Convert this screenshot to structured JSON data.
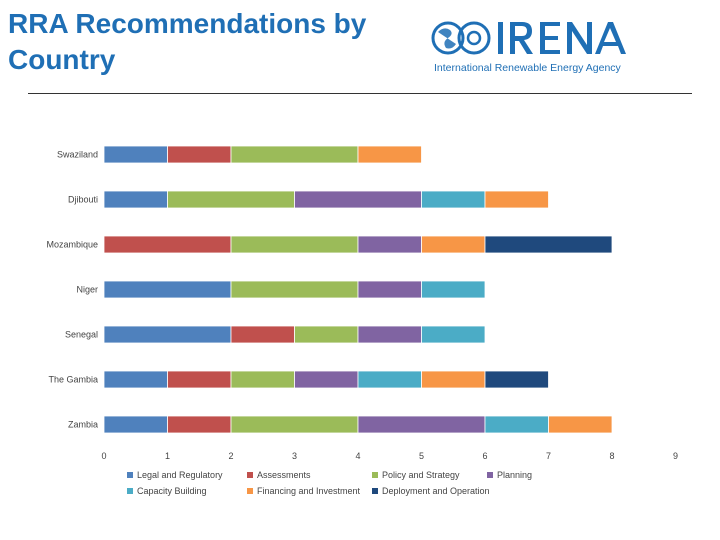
{
  "slide": {
    "title": "RRA Recommendations by Country"
  },
  "logo": {
    "name": "IRENA",
    "tagline": "International Renewable Energy Agency",
    "color": "#1f6fb5"
  },
  "chart_data": {
    "type": "bar",
    "orientation": "horizontal",
    "stacked": true,
    "categories": [
      "Swaziland",
      "Djibouti",
      "Mozambique",
      "Niger",
      "Senegal",
      "The Gambia",
      "Zambia"
    ],
    "series": [
      {
        "name": "Legal and Regulatory",
        "color": "#4f81bd",
        "values": [
          1,
          1,
          0,
          2,
          2,
          1,
          1
        ]
      },
      {
        "name": "Assessments",
        "color": "#c0504d",
        "values": [
          1,
          0,
          2,
          0,
          1,
          1,
          1
        ]
      },
      {
        "name": "Policy and Strategy",
        "color": "#9bbb59",
        "values": [
          2,
          2,
          2,
          2,
          1,
          1,
          2
        ]
      },
      {
        "name": "Planning",
        "color": "#8064a2",
        "values": [
          0,
          2,
          1,
          1,
          1,
          1,
          2
        ]
      },
      {
        "name": "Capacity Building",
        "color": "#4bacc6",
        "values": [
          0,
          1,
          0,
          1,
          1,
          1,
          1
        ]
      },
      {
        "name": "Financing and Investment",
        "color": "#f79646",
        "values": [
          1,
          1,
          1,
          0,
          0,
          1,
          1
        ]
      },
      {
        "name": "Deployment and Operation",
        "color": "#1f497d",
        "values": [
          0,
          0,
          2,
          0,
          0,
          1,
          0
        ]
      }
    ],
    "xlim": [
      0,
      9
    ],
    "xticks": [
      "0",
      "1",
      "2",
      "3",
      "4",
      "5",
      "6",
      "7",
      "8",
      "9"
    ],
    "grid": false,
    "legend_position": "bottom"
  }
}
